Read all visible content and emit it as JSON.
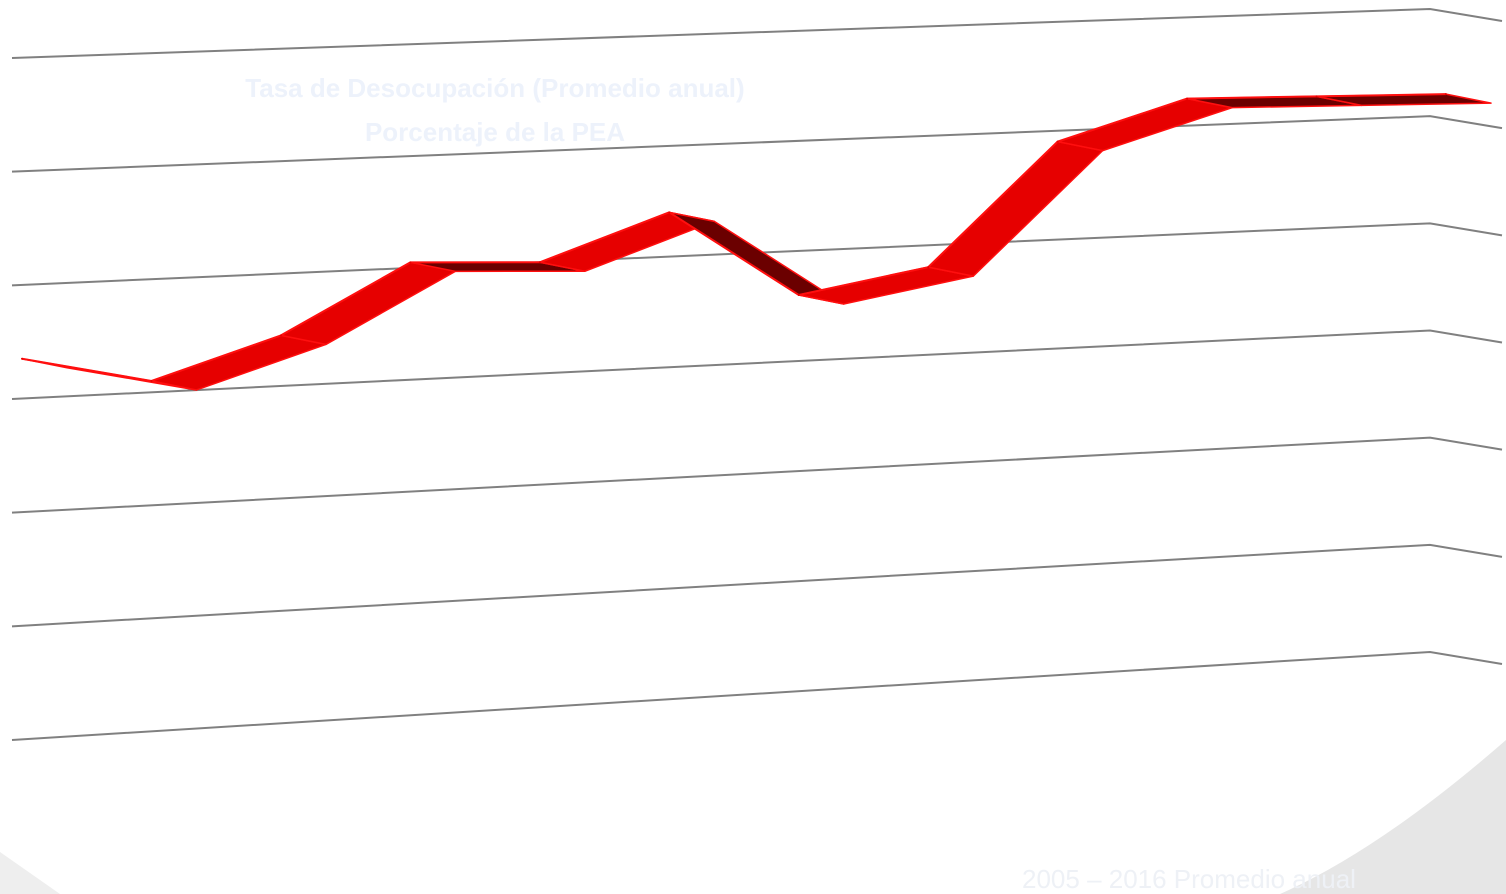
{
  "colors": {
    "line_front": "#e60000",
    "line_top": "#ff0f0f",
    "line_side": "#6b0000",
    "gridline": "#808080",
    "title_text": "#edf2fb",
    "footer_text": "#eef1f6",
    "slide_shape": "#e6e6e6",
    "slide_shape_left": "#eeeeee"
  },
  "chart_data": {
    "type": "line",
    "title": "Tasa de Desocupación (Promedio anual)",
    "subtitle": "Porcentaje de la PEA",
    "series": [
      {
        "values": [
          6.7,
          6.2,
          6.9,
          8.1,
          8.0,
          8.8,
          7.2,
          7.6,
          9.8,
          10.5,
          10.45,
          10.4
        ]
      }
    ],
    "ylim": [
      0,
      12
    ],
    "grid": true,
    "style": "3d-ribbon"
  },
  "footer": {
    "text": "2005 – 2016 Promedio anual"
  }
}
